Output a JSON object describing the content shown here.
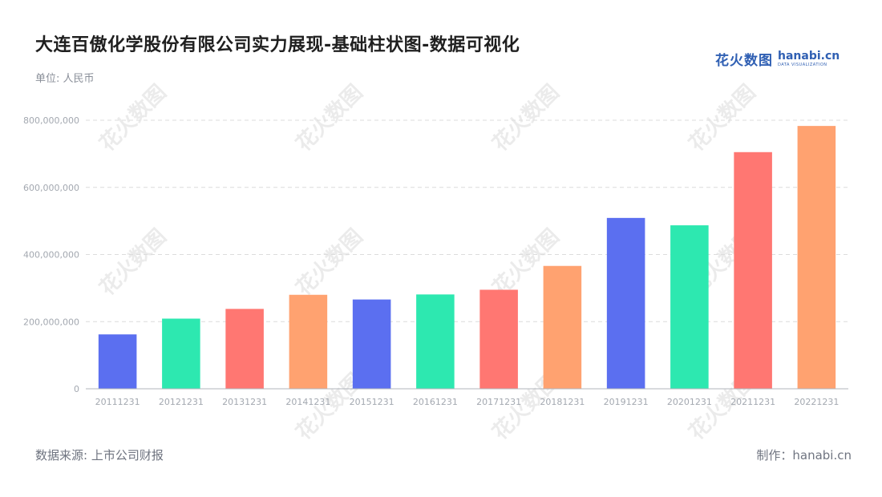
{
  "header": {
    "title": "大连百傲化学股份有限公司实力展现-基础柱状图-数据可视化",
    "subtitle": "单位: 人民币"
  },
  "brand": {
    "name_cn": "花火数图",
    "name_en": "hanabi.cn",
    "tagline": "DATA VISUALIZATION"
  },
  "footer": {
    "source": "数据来源: 上市公司财报",
    "maker": "制作：hanabi.cn"
  },
  "colors": {
    "palette": [
      "#5b6ff0",
      "#2de8b0",
      "#ff7772",
      "#ffa270"
    ],
    "grid": "#dcdcdc",
    "axis": "#b0b4bb"
  },
  "chart_data": {
    "type": "bar",
    "title": "大连百傲化学股份有限公司实力展现-基础柱状图-数据可视化",
    "xlabel": "",
    "ylabel": "",
    "categories": [
      "20111231",
      "20121231",
      "20131231",
      "20141231",
      "20151231",
      "20161231",
      "20171231",
      "20181231",
      "20191231",
      "20201231",
      "20211231",
      "20221231"
    ],
    "values": [
      162000000,
      209000000,
      238000000,
      280000000,
      266000000,
      281000000,
      295000000,
      366000000,
      509000000,
      487000000,
      705000000,
      783000000
    ],
    "ylim": [
      0,
      800000000
    ],
    "yticks": [
      0,
      200000000,
      400000000,
      600000000,
      800000000
    ],
    "ytick_labels": [
      "0",
      "200,000,000",
      "400,000,000",
      "600,000,000",
      "800,000,000"
    ],
    "grid": true,
    "legend": "none",
    "watermark": "花火数图"
  }
}
